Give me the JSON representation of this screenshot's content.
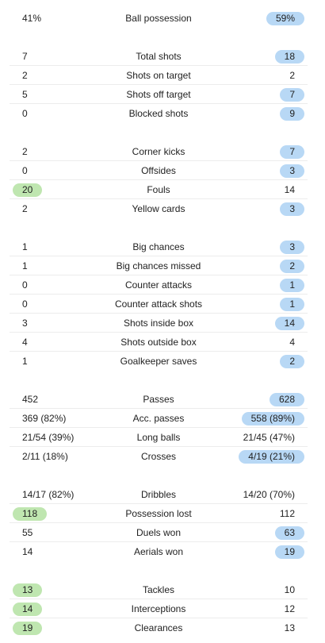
{
  "stats": [
    {
      "label": "Ball possession",
      "home": "41%",
      "away": "59%",
      "highlight": "away"
    },
    {
      "label": "Total shots",
      "home": "7",
      "away": "18",
      "highlight": "away"
    },
    {
      "label": "Shots on target",
      "home": "2",
      "away": "2",
      "highlight": "none"
    },
    {
      "label": "Shots off target",
      "home": "5",
      "away": "7",
      "highlight": "away"
    },
    {
      "label": "Blocked shots",
      "home": "0",
      "away": "9",
      "highlight": "away"
    },
    {
      "label": "Corner kicks",
      "home": "2",
      "away": "7",
      "highlight": "away"
    },
    {
      "label": "Offsides",
      "home": "0",
      "away": "3",
      "highlight": "away"
    },
    {
      "label": "Fouls",
      "home": "20",
      "away": "14",
      "highlight": "home"
    },
    {
      "label": "Yellow cards",
      "home": "2",
      "away": "3",
      "highlight": "away"
    },
    {
      "label": "Big chances",
      "home": "1",
      "away": "3",
      "highlight": "away"
    },
    {
      "label": "Big chances missed",
      "home": "1",
      "away": "2",
      "highlight": "away"
    },
    {
      "label": "Counter attacks",
      "home": "0",
      "away": "1",
      "highlight": "away"
    },
    {
      "label": "Counter attack shots",
      "home": "0",
      "away": "1",
      "highlight": "away"
    },
    {
      "label": "Shots inside box",
      "home": "3",
      "away": "14",
      "highlight": "away"
    },
    {
      "label": "Shots outside box",
      "home": "4",
      "away": "4",
      "highlight": "none"
    },
    {
      "label": "Goalkeeper saves",
      "home": "1",
      "away": "2",
      "highlight": "away"
    },
    {
      "label": "Passes",
      "home": "452",
      "away": "628",
      "highlight": "away"
    },
    {
      "label": "Acc. passes",
      "home": "369 (82%)",
      "away": "558 (89%)",
      "highlight": "away"
    },
    {
      "label": "Long balls",
      "home": "21/54 (39%)",
      "away": "21/45 (47%)",
      "highlight": "none"
    },
    {
      "label": "Crosses",
      "home": "2/11 (18%)",
      "away": "4/19 (21%)",
      "highlight": "away"
    },
    {
      "label": "Dribbles",
      "home": "14/17 (82%)",
      "away": "14/20 (70%)",
      "highlight": "none"
    },
    {
      "label": "Possession lost",
      "home": "118",
      "away": "112",
      "highlight": "home"
    },
    {
      "label": "Duels won",
      "home": "55",
      "away": "63",
      "highlight": "away"
    },
    {
      "label": "Aerials won",
      "home": "14",
      "away": "19",
      "highlight": "away"
    },
    {
      "label": "Tackles",
      "home": "13",
      "away": "10",
      "highlight": "home"
    },
    {
      "label": "Interceptions",
      "home": "14",
      "away": "12",
      "highlight": "home"
    },
    {
      "label": "Clearances",
      "home": "19",
      "away": "13",
      "highlight": "home"
    }
  ],
  "groups": [
    1,
    4,
    4,
    7,
    4,
    4,
    3
  ],
  "colors": {
    "home_highlight": "#bfe6b0",
    "away_highlight": "#b8d8f5",
    "divider": "#ececec",
    "text": "#222222"
  }
}
